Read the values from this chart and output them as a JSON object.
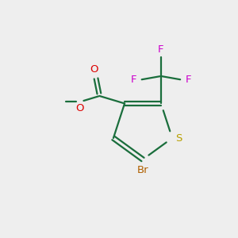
{
  "background_color": "#eeeeee",
  "bond_color": "#1a6e3c",
  "sulfur_color": "#b8a000",
  "bromine_color": "#b06000",
  "oxygen_color": "#dd0000",
  "fluorine_color": "#cc00cc",
  "figsize": [
    3.0,
    3.0
  ],
  "dpi": 100,
  "xlim": [
    0,
    10
  ],
  "ylim": [
    0,
    10
  ]
}
